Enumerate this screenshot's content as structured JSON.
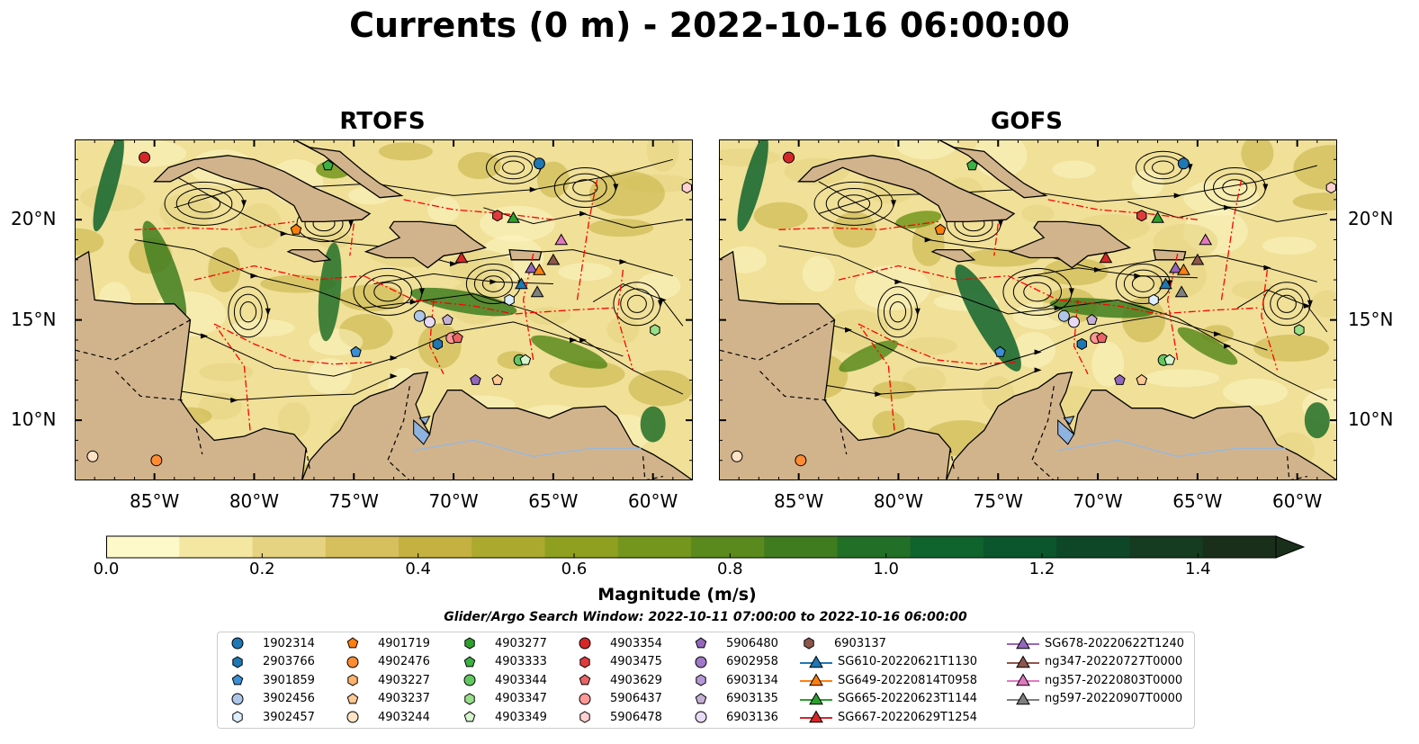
{
  "figure": {
    "title": "Currents (0 m) - 2022-10-16 06:00:00",
    "panels": [
      {
        "title": "RTOFS"
      },
      {
        "title": "GOFS"
      }
    ],
    "lat_labels": [
      "20°N",
      "15°N",
      "10°N"
    ],
    "lon_labels": [
      "85°W",
      "80°W",
      "75°W",
      "70°W",
      "65°W",
      "60°W"
    ],
    "map_extent": {
      "lon": [
        -89,
        -58
      ],
      "lat": [
        7,
        24
      ]
    },
    "colors": {
      "land": "#d2b48c",
      "ocean_low": "#fdf6c2",
      "ocean_high": "#0d5c2a",
      "eez_line": "#ff0000",
      "streamline": "#000000",
      "lake": "#8fb3e0"
    }
  },
  "colorbar": {
    "label": "Magnitude (m/s)",
    "ticks": [
      "0.0",
      "0.2",
      "0.4",
      "0.6",
      "0.8",
      "1.0",
      "1.2",
      "1.4"
    ],
    "range": [
      0,
      1.5
    ],
    "extend": "max",
    "colors": [
      "#fef9c8",
      "#f3e7a2",
      "#e6d381",
      "#d6bf5d",
      "#c4b142",
      "#abaa2f",
      "#8fa021",
      "#74961c",
      "#5a8a1d",
      "#3f7c20",
      "#226f27",
      "#0f632c",
      "#0b562c",
      "#0e4727",
      "#153b21",
      "#1a2f19"
    ]
  },
  "search_window": "Glider/Argo Search Window: 2022-10-11 07:00:00 to 2022-10-16 06:00:00",
  "legend": {
    "columns": [
      [
        {
          "label": "1902314",
          "marker": "circle",
          "color": "#1f77b4"
        },
        {
          "label": "2903766",
          "marker": "hexagon",
          "color": "#1f77b4"
        },
        {
          "label": "3901859",
          "marker": "pentagon",
          "color": "#3a8fd6"
        },
        {
          "label": "3902456",
          "marker": "circle",
          "color": "#aec7e8"
        },
        {
          "label": "3902457",
          "marker": "hexagon",
          "color": "#ddeeff"
        }
      ],
      [
        {
          "label": "4901719",
          "marker": "pentagon",
          "color": "#ff7f0e"
        },
        {
          "label": "4902476",
          "marker": "circle",
          "color": "#ff8c33"
        },
        {
          "label": "4903227",
          "marker": "hexagon",
          "color": "#ffb26b"
        },
        {
          "label": "4903237",
          "marker": "pentagon",
          "color": "#ffc994"
        },
        {
          "label": "4903244",
          "marker": "circle",
          "color": "#ffe3c6"
        }
      ],
      [
        {
          "label": "4903277",
          "marker": "hexagon",
          "color": "#2ca02c"
        },
        {
          "label": "4903333",
          "marker": "pentagon",
          "color": "#3cb043"
        },
        {
          "label": "4903344",
          "marker": "circle",
          "color": "#5fc95f"
        },
        {
          "label": "4903347",
          "marker": "hexagon",
          "color": "#98df8a"
        },
        {
          "label": "4903349",
          "marker": "pentagon",
          "color": "#d6f5cf"
        }
      ],
      [
        {
          "label": "4903354",
          "marker": "circle",
          "color": "#d62728"
        },
        {
          "label": "4903475",
          "marker": "hexagon",
          "color": "#e03b3c"
        },
        {
          "label": "4903629",
          "marker": "pentagon",
          "color": "#ea6466"
        },
        {
          "label": "5906437",
          "marker": "circle",
          "color": "#ff9896"
        },
        {
          "label": "5906478",
          "marker": "hexagon",
          "color": "#ffd1d0"
        }
      ],
      [
        {
          "label": "5906480",
          "marker": "pentagon",
          "color": "#9467bd"
        },
        {
          "label": "6902958",
          "marker": "circle",
          "color": "#9f78c8"
        },
        {
          "label": "6903134",
          "marker": "hexagon",
          "color": "#b497d6"
        },
        {
          "label": "6903135",
          "marker": "pentagon",
          "color": "#c5b0d5"
        },
        {
          "label": "6903136",
          "marker": "circle",
          "color": "#e8d9f5"
        }
      ],
      [
        {
          "label": "6903137",
          "marker": "hexagon",
          "color": "#8c564b"
        },
        {
          "label": "SG610-20220621T1130",
          "marker": "triangle",
          "color": "#1f77b4"
        },
        {
          "label": "SG649-20220814T0958",
          "marker": "triangle",
          "color": "#ff7f0e"
        },
        {
          "label": "SG665-20220623T1144",
          "marker": "triangle",
          "color": "#2ca02c"
        },
        {
          "label": "SG667-20220629T1254",
          "marker": "triangle",
          "color": "#d62728"
        }
      ],
      [
        {
          "label": "SG678-20220622T1240",
          "marker": "triangle",
          "color": "#9467bd"
        },
        {
          "label": "ng347-20220727T0000",
          "marker": "triangle",
          "color": "#8c564b"
        },
        {
          "label": "ng357-20220803T0000",
          "marker": "triangle",
          "color": "#e377c2"
        },
        {
          "label": "ng597-20220907T0000",
          "marker": "triangle",
          "color": "#7f7f7f"
        }
      ]
    ]
  },
  "markers_on_map": [
    {
      "id": "1902314",
      "marker": "circle",
      "color": "#1f77b4",
      "lon": -65.7,
      "lat": 22.8
    },
    {
      "id": "4903354",
      "marker": "circle",
      "color": "#d62728",
      "lon": -85.5,
      "lat": 23.1
    },
    {
      "id": "4903333",
      "marker": "pentagon",
      "color": "#3cb043",
      "lon": -76.3,
      "lat": 22.7
    },
    {
      "id": "5906478",
      "marker": "hexagon",
      "color": "#ffd1d0",
      "lon": -58.3,
      "lat": 21.6
    },
    {
      "id": "4903475",
      "marker": "hexagon",
      "color": "#e03b3c",
      "lon": -67.8,
      "lat": 20.2
    },
    {
      "id": "SG665-20220623T1144",
      "marker": "triangle",
      "color": "#2ca02c",
      "lon": -67.0,
      "lat": 20.1
    },
    {
      "id": "4901719",
      "marker": "pentagon",
      "color": "#ff7f0e",
      "lon": -77.9,
      "lat": 19.5
    },
    {
      "id": "ng357-20220803T0000",
      "marker": "triangle",
      "color": "#e377c2",
      "lon": -64.6,
      "lat": 19.0
    },
    {
      "id": "SG667-20220629T1254",
      "marker": "triangle",
      "color": "#d62728",
      "lon": -69.6,
      "lat": 18.1
    },
    {
      "id": "ng347-20220727T0000",
      "marker": "triangle",
      "color": "#8c564b",
      "lon": -65.0,
      "lat": 18.0
    },
    {
      "id": "SG678-20220622T1240",
      "marker": "triangle",
      "color": "#9467bd",
      "lon": -66.1,
      "lat": 17.6
    },
    {
      "id": "SG649-20220814T0958",
      "marker": "triangle",
      "color": "#ff7f0e",
      "lon": -65.7,
      "lat": 17.5
    },
    {
      "id": "SG610-20220621T1130",
      "marker": "triangle",
      "color": "#1f77b4",
      "lon": -66.6,
      "lat": 16.8
    },
    {
      "id": "ng597-20220907T0000",
      "marker": "triangle",
      "color": "#7f7f7f",
      "lon": -65.8,
      "lat": 16.4
    },
    {
      "id": "3902457",
      "marker": "hexagon",
      "color": "#ddeeff",
      "lon": -67.2,
      "lat": 16.0
    },
    {
      "id": "3902456",
      "marker": "circle",
      "color": "#aec7e8",
      "lon": -71.7,
      "lat": 15.2
    },
    {
      "id": "6903136",
      "marker": "circle",
      "color": "#e8d9f5",
      "lon": -71.2,
      "lat": 14.9
    },
    {
      "id": "6903135",
      "marker": "pentagon",
      "color": "#c5b0d5",
      "lon": -70.3,
      "lat": 15.0
    },
    {
      "id": "4903347",
      "marker": "hexagon",
      "color": "#98df8a",
      "lon": -59.9,
      "lat": 14.5
    },
    {
      "id": "5906437",
      "marker": "circle",
      "color": "#ff9896",
      "lon": -70.1,
      "lat": 14.1
    },
    {
      "id": "4903629",
      "marker": "pentagon",
      "color": "#ea6466",
      "lon": -69.8,
      "lat": 14.1
    },
    {
      "id": "2903766",
      "marker": "hexagon",
      "color": "#1f77b4",
      "lon": -70.8,
      "lat": 13.8
    },
    {
      "id": "3901859",
      "marker": "pentagon",
      "color": "#3a8fd6",
      "lon": -74.9,
      "lat": 13.4
    },
    {
      "id": "4903344",
      "marker": "circle",
      "color": "#5fc95f",
      "lon": -66.7,
      "lat": 13.0
    },
    {
      "id": "4903349",
      "marker": "pentagon",
      "color": "#d6f5cf",
      "lon": -66.4,
      "lat": 13.0
    },
    {
      "id": "5906480",
      "marker": "pentagon",
      "color": "#9467bd",
      "lon": -68.9,
      "lat": 12.0
    },
    {
      "id": "4903237",
      "marker": "pentagon",
      "color": "#ffc994",
      "lon": -67.8,
      "lat": 12.0
    },
    {
      "id": "4903244",
      "marker": "circle",
      "color": "#ffe3c6",
      "lon": -88.1,
      "lat": 8.2
    },
    {
      "id": "4902476",
      "marker": "circle",
      "color": "#ff8c33",
      "lon": -84.9,
      "lat": 8.0
    }
  ]
}
